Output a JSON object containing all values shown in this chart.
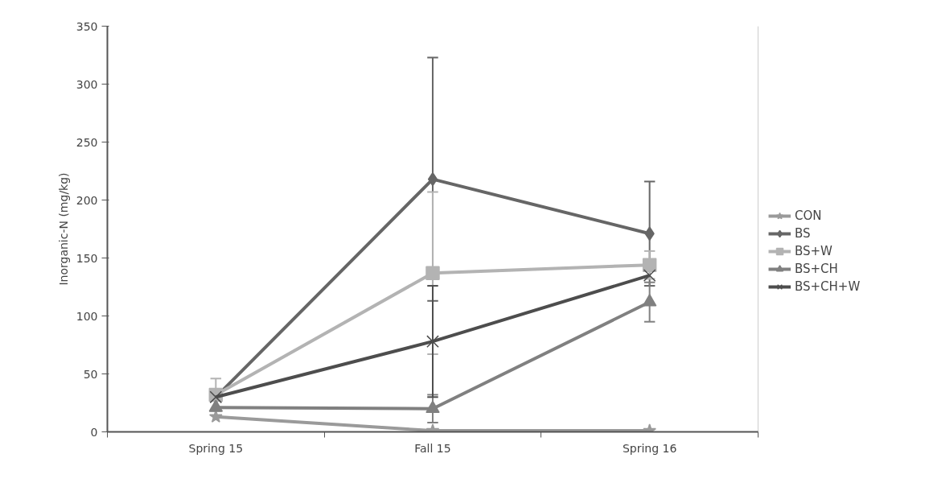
{
  "chart_data": {
    "type": "line",
    "ylabel": "Inorganic-N (mg/kg)",
    "categories": [
      "Spring 15",
      "Fall 15",
      "Spring 16"
    ],
    "ylim": [
      0,
      350
    ],
    "yticks": [
      0,
      50,
      100,
      150,
      200,
      250,
      300,
      350
    ],
    "grid": false,
    "legend": "right",
    "line_style": "solid",
    "series": [
      {
        "name": "CON",
        "color": "#9a9a9a",
        "marker": "star",
        "values": [
          13,
          1,
          1
        ]
      },
      {
        "name": "BS",
        "color": "#666666",
        "marker": "diamond",
        "values": [
          30,
          218,
          171
        ],
        "errors": [
          null,
          105,
          45
        ]
      },
      {
        "name": "BS+W",
        "color": "#b3b3b3",
        "marker": "square",
        "values": [
          32,
          137,
          144
        ],
        "errors": [
          14,
          70,
          12
        ]
      },
      {
        "name": "BS+CH",
        "color": "#808080",
        "marker": "triangle",
        "values": [
          21,
          20,
          112
        ],
        "errors": [
          null,
          12,
          17
        ]
      },
      {
        "name": "BS+CH+W",
        "color": "#4d4d4d",
        "marker": "cross",
        "values": [
          30,
          78,
          135
        ],
        "errors": [
          null,
          48,
          null
        ]
      }
    ]
  }
}
